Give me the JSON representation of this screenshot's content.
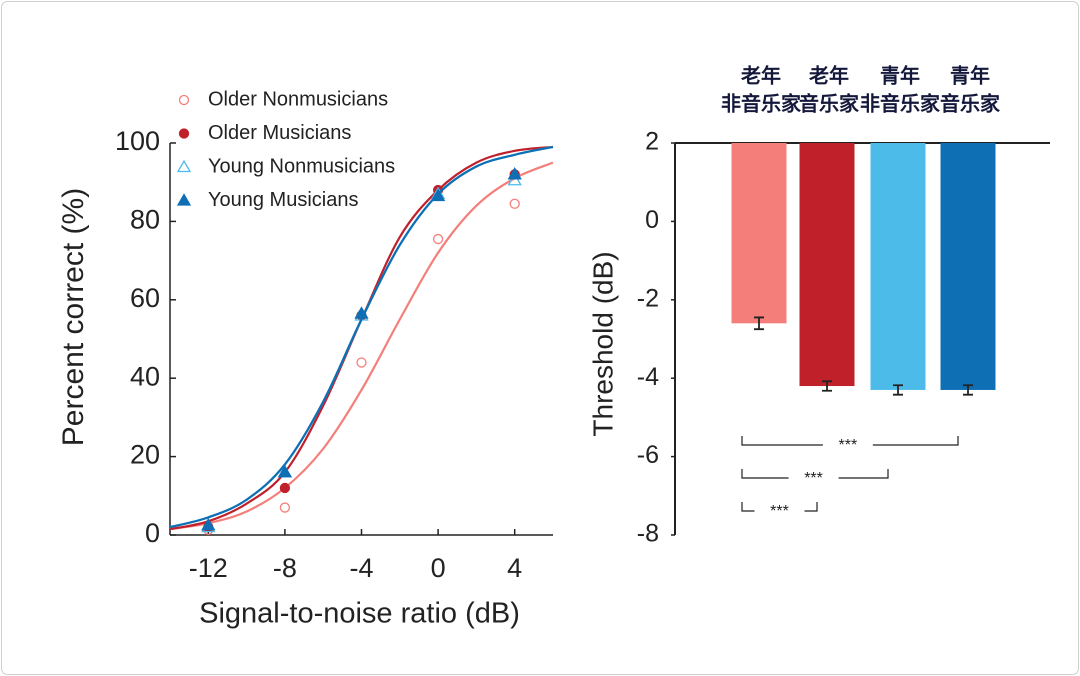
{
  "chart_data": [
    {
      "type": "line",
      "xlabel": "Signal-to-noise ratio (dB)",
      "ylabel": "Percent correct (%)",
      "x": [
        -12,
        -8,
        -4,
        0,
        4
      ],
      "fit_x": [
        -14,
        -12,
        -10,
        -8,
        -6,
        -4,
        -2,
        0,
        2,
        4,
        6
      ],
      "xlim": [
        -14,
        6
      ],
      "ylim": [
        0,
        100
      ],
      "xticks": [
        -12,
        -8,
        -4,
        0,
        4
      ],
      "yticks": [
        0,
        20,
        40,
        60,
        80,
        100
      ],
      "legend": "upper left",
      "series": [
        {
          "name": "Older Nonmusicians",
          "color": "#f47f7a",
          "marker": "circle",
          "filled": false,
          "values": [
            1.3,
            7,
            44,
            75.5,
            84.5
          ],
          "fit_values": [
            1.5,
            3,
            6,
            12,
            22,
            37,
            55,
            72,
            84,
            91,
            95
          ]
        },
        {
          "name": "Older Musicians",
          "color": "#c0202a",
          "marker": "circle",
          "filled": true,
          "values": [
            2,
            12,
            56,
            88,
            92
          ],
          "fit_values": [
            1.5,
            3.5,
            8,
            16,
            33,
            55,
            76,
            88,
            95,
            98,
            99
          ]
        },
        {
          "name": "Young Nonmusicians",
          "color": "#4cbbea",
          "marker": "triangle",
          "filled": false,
          "values": [
            2,
            16,
            56,
            87,
            90.5
          ],
          "fit_values": [
            2,
            4.5,
            9,
            18,
            34,
            55,
            74,
            87,
            94,
            97,
            99
          ]
        },
        {
          "name": "Young Musicians",
          "color": "#0f6fb5",
          "marker": "triangle",
          "filled": true,
          "values": [
            2.5,
            16,
            56.5,
            86.5,
            92
          ],
          "fit_values": [
            2,
            4.5,
            9,
            18,
            34,
            55,
            74,
            87,
            94,
            97,
            99
          ]
        }
      ]
    },
    {
      "type": "bar",
      "ylabel": "Threshold (dB)",
      "categories": [
        [
          "老年",
          "非音乐家"
        ],
        [
          "老年",
          "音乐家"
        ],
        [
          "青年",
          "非音乐家"
        ],
        [
          "青年",
          "音乐家"
        ]
      ],
      "values": [
        -2.6,
        -4.2,
        -4.3,
        -4.3
      ],
      "errors": [
        0.15,
        0.12,
        0.12,
        0.12
      ],
      "colors": [
        "#f47f7a",
        "#c0202a",
        "#4cbbea",
        "#0f6fb5"
      ],
      "ylim": [
        -8,
        2
      ],
      "yticks": [
        -8,
        -6,
        -4,
        -2,
        0,
        2
      ],
      "annotations": [
        "***",
        "***",
        "***"
      ]
    }
  ]
}
